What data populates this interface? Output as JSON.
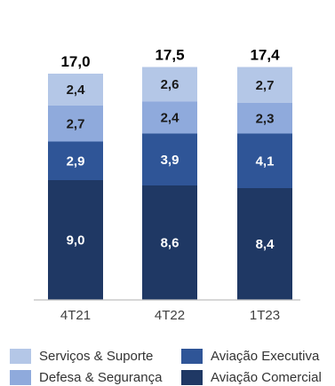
{
  "chart_data": {
    "type": "bar",
    "stacked": true,
    "categories": [
      "4T21",
      "4T22",
      "1T23"
    ],
    "totals": [
      "17,0",
      "17,5",
      "17,4"
    ],
    "series": [
      {
        "name": "Aviação Comercial",
        "values": [
          9.0,
          8.6,
          8.4
        ],
        "labels": [
          "9,0",
          "8,6",
          "8,4"
        ],
        "color": "#1f3864"
      },
      {
        "name": "Aviação Executiva",
        "values": [
          2.9,
          3.9,
          4.1
        ],
        "labels": [
          "2,9",
          "3,9",
          "4,1"
        ],
        "color": "#2f5597"
      },
      {
        "name": "Defesa & Segurança",
        "values": [
          2.7,
          2.4,
          2.3
        ],
        "labels": [
          "2,7",
          "2,4",
          "2,3"
        ],
        "color": "#8faadc"
      },
      {
        "name": "Serviços & Suporte",
        "values": [
          2.4,
          2.6,
          2.7
        ],
        "labels": [
          "2,4",
          "2,6",
          "2,7"
        ],
        "color": "#b4c7e7"
      }
    ],
    "legend": [
      "Serviços & Suporte",
      "Aviação Executiva",
      "Defesa & Segurança",
      "Aviação Comercial"
    ],
    "legend_position": "bottom",
    "grid": false,
    "ylim": [
      0,
      18
    ]
  }
}
